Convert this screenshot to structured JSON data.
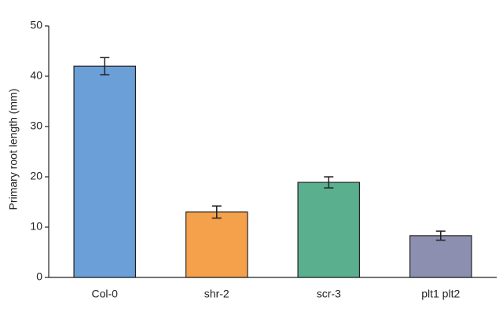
{
  "chart_data": {
    "type": "bar",
    "ylabel": "Primary root length (mm)",
    "categories": [
      "Col-0",
      "shr-2",
      "scr-3",
      "plt1 plt2"
    ],
    "values": [
      42,
      13,
      18.9,
      8.3
    ],
    "errors": [
      1.7,
      1.2,
      1.1,
      0.9
    ],
    "colors": [
      "#6a9fd8",
      "#f5a04a",
      "#5aaf8f",
      "#8c8fb0"
    ],
    "ylim": [
      0,
      50
    ],
    "yticks": [
      0,
      10,
      20,
      30,
      40,
      50
    ]
  }
}
